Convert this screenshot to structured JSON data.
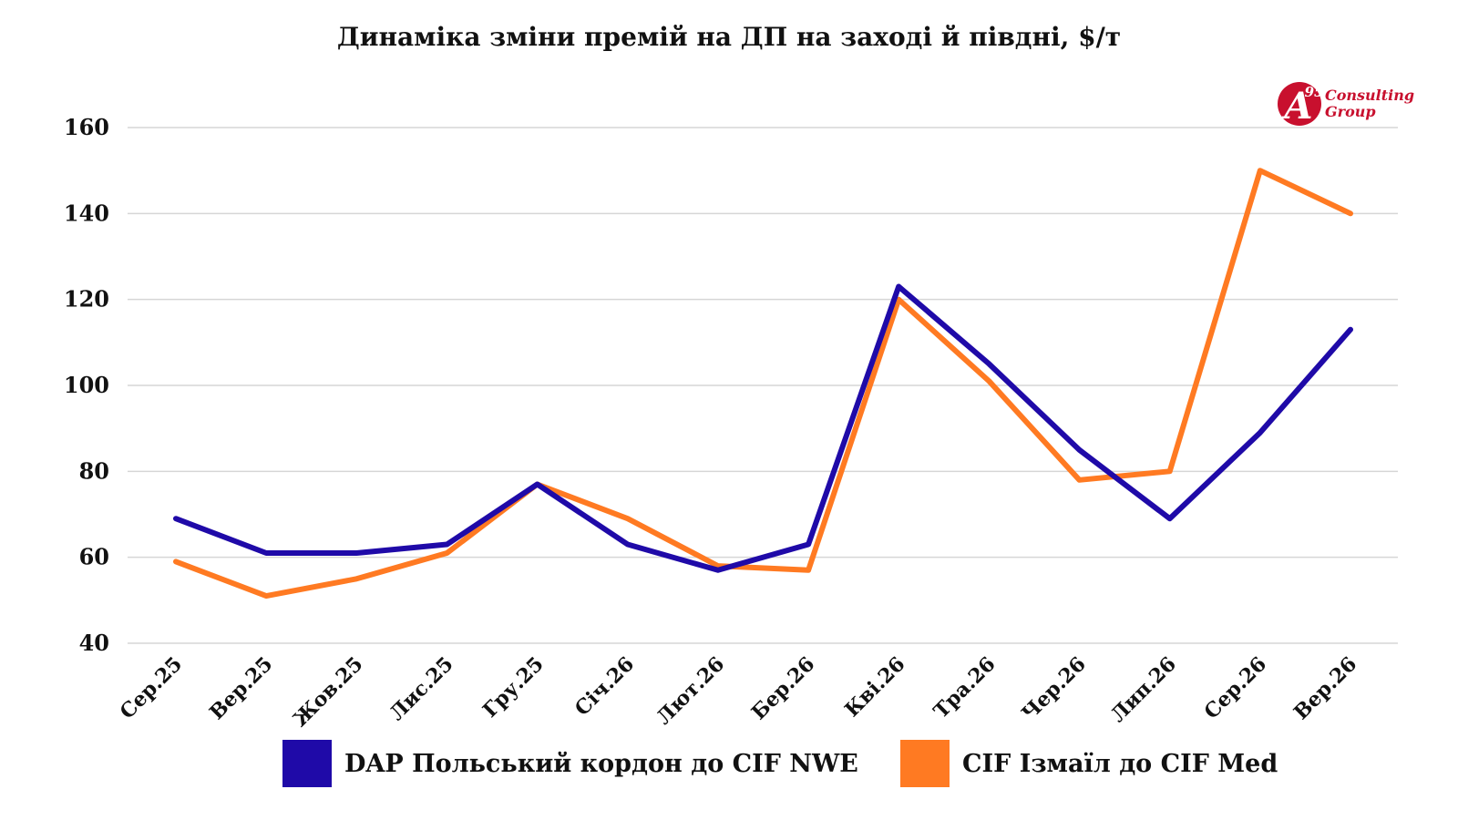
{
  "logo": {
    "mark": "A",
    "mark_sup": "95",
    "line1": "Consulting",
    "line2": "Group",
    "color": "#c8102e"
  },
  "chart_data": {
    "type": "line",
    "title": "Динаміка зміни премій на ДП на заході й півдні, $/т",
    "xlabel": "",
    "ylabel": "",
    "categories": [
      "Сер.25",
      "Вер.25",
      "Жов.25",
      "Лис.25",
      "Гру.25",
      "Січ.26",
      "Лют.26",
      "Бер.26",
      "Кві.26",
      "Тра.26",
      "Чер.26",
      "Лип.26",
      "Сер.26",
      "Вер.26"
    ],
    "ylim": [
      40,
      160
    ],
    "yticks": [
      40,
      60,
      80,
      100,
      120,
      140,
      160
    ],
    "grid": true,
    "legend_position": "bottom",
    "series": [
      {
        "name": "DAP Польський кордон до CIF NWE",
        "color": "#1f0aa8",
        "values": [
          69,
          61,
          61,
          63,
          77,
          63,
          57,
          63,
          123,
          105,
          85,
          69,
          89,
          113
        ]
      },
      {
        "name": "CIF Ізмаїл до CIF Med",
        "color": "#ff7a22",
        "values": [
          59,
          51,
          55,
          61,
          77,
          69,
          58,
          57,
          120,
          101,
          78,
          80,
          150,
          140
        ]
      }
    ]
  }
}
